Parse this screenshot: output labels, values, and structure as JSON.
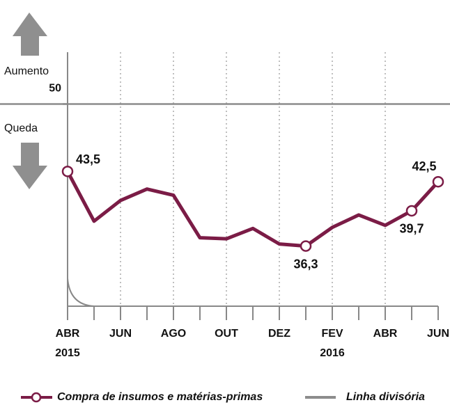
{
  "chart_data": {
    "type": "line",
    "categories": [
      "ABR",
      null,
      "JUN",
      null,
      "AGO",
      null,
      "OUT",
      null,
      "DEZ",
      null,
      "FEV",
      null,
      "ABR",
      null,
      "JUN"
    ],
    "category_years": [
      "2015",
      null,
      null,
      null,
      null,
      null,
      null,
      null,
      null,
      null,
      "2016",
      null,
      null,
      null,
      null
    ],
    "series": [
      {
        "name": "Compra de insumos e matérias-primas",
        "color": "#7b1c46",
        "values": [
          43.5,
          38.7,
          40.7,
          41.8,
          41.2,
          37.1,
          37.0,
          38.0,
          36.5,
          36.3,
          38.1,
          39.3,
          38.3,
          39.7,
          42.5
        ],
        "value_labels": [
          "43,5",
          null,
          null,
          null,
          null,
          null,
          null,
          null,
          null,
          "36,3",
          null,
          null,
          null,
          "39,7",
          "42,5"
        ]
      }
    ],
    "reference_line": {
      "name": "Linha divisória",
      "value": 50,
      "color": "#8c8c8c"
    },
    "ylim": [
      30.5,
      55
    ],
    "yticks": [
      50
    ],
    "annotations": {
      "up": "Aumento",
      "down": "Queda"
    },
    "grid": true
  }
}
